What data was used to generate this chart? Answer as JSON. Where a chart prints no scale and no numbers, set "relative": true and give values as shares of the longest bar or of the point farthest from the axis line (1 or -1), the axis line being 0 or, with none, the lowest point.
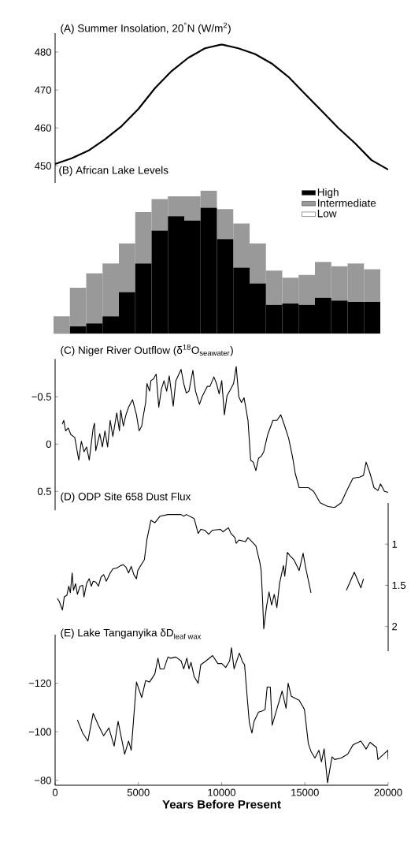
{
  "chart_data": [
    {
      "type": "line",
      "title": "(A) Summer Insolation, 20$^{°}$N (W/m$^{2}$)",
      "xlim": [
        0,
        20000
      ],
      "ylim": [
        445.5,
        485
      ],
      "yticks": [
        450,
        460,
        470,
        480
      ],
      "tick_labels": "y",
      "series": [
        {
          "color": "#000000",
          "x": [
            0,
            1000,
            2000,
            3000,
            4000,
            5000,
            6000,
            7000,
            8000,
            9000,
            10000,
            11000,
            12000,
            13000,
            14000,
            15000,
            16000,
            17000,
            18000,
            19000,
            20000
          ],
          "values": [
            450.5,
            452,
            454,
            457,
            460.5,
            465,
            470.5,
            475,
            478.5,
            481,
            482,
            481,
            479.5,
            477,
            473.5,
            469,
            464.5,
            460,
            456,
            451.5,
            449
          ]
        }
      ]
    },
    {
      "type": "bar",
      "title": "(B) African Lake Levels",
      "relative": true,
      "stacked": true,
      "legend": "top right",
      "categories": [
        null,
        null,
        null,
        null,
        null,
        null,
        null,
        null,
        null,
        null,
        null,
        null,
        null,
        null,
        null,
        null,
        null,
        null,
        null,
        null
      ],
      "series": [
        {
          "name": "High",
          "color": "#000000",
          "values": [
            0,
            0.05,
            0.07,
            0.12,
            0.29,
            0.49,
            0.72,
            0.82,
            0.79,
            0.88,
            0.66,
            0.46,
            0.35,
            0.2,
            0.21,
            0.2,
            0.25,
            0.23,
            0.22,
            0.22
          ]
        },
        {
          "name": "Intermediate",
          "color": "#999999",
          "values": [
            0.12,
            0.27,
            0.35,
            0.37,
            0.34,
            0.36,
            0.22,
            0.14,
            0.17,
            0.12,
            0.21,
            0.31,
            0.28,
            0.24,
            0.18,
            0.21,
            0.25,
            0.24,
            0.27,
            0.23
          ]
        },
        {
          "name": "Low",
          "color": "#ffffff",
          "values": [
            null,
            null,
            null,
            null,
            null,
            null,
            null,
            null,
            null,
            null,
            null,
            null,
            null,
            null,
            null,
            null,
            null,
            null,
            null,
            null
          ]
        }
      ]
    },
    {
      "type": "line",
      "title": "(C) Niger River Outflow  (δ$^{18}$O$_{seawater}$)",
      "xlim": [
        0,
        20000
      ],
      "ylim": [
        0.7,
        -0.9
      ],
      "yticks": [
        {
          "value": -0.5,
          "label": "−0.5"
        },
        0,
        0.5
      ],
      "tick_labels": "y",
      "series": [
        {
          "color": "#000000",
          "x": [
            425,
            520,
            630,
            790,
            945,
            1180,
            1420,
            1575,
            1735,
            1890,
            2050,
            2285,
            2364,
            2440,
            2680,
            2836,
            2994,
            3152,
            3309,
            3467,
            3703,
            3861,
            3940,
            4097,
            4255,
            4412,
            4649,
            4885,
            5043,
            5200,
            5279,
            5437,
            5516,
            5673,
            5752,
            5910,
            6067,
            6225,
            6382,
            6540,
            6698,
            6855,
            7092,
            7249,
            7564,
            7722,
            7880,
            8037,
            8274,
            8431,
            8668,
            8825,
            9140,
            9298,
            9534,
            9692,
            9850,
            10007,
            10165,
            10322,
            10480,
            10716,
            10874,
            11032,
            11189,
            11347,
            11583,
            11741,
            11898,
            12056,
            12214,
            12371,
            12529,
            12765,
            13080,
            13317,
            13553,
            13790,
            14026,
            14262,
            14420,
            14656,
            14972,
            15208,
            15523,
            15917,
            16390,
            16784,
            17178,
            17493,
            17887,
            18281,
            18518,
            18675,
            18912,
            19148,
            19384,
            19542,
            19778,
            20000
          ],
          "values": [
            -0.21,
            -0.25,
            -0.14,
            -0.17,
            -0.1,
            -0.07,
            0.17,
            -0.03,
            0.08,
            0.03,
            0.17,
            -0.17,
            -0.22,
            0.07,
            -0.11,
            0.03,
            -0.14,
            0.03,
            -0.25,
            -0.08,
            -0.33,
            -0.14,
            -0.36,
            -0.19,
            -0.31,
            -0.39,
            -0.47,
            -0.31,
            -0.14,
            -0.19,
            -0.28,
            -0.44,
            -0.64,
            -0.56,
            -0.67,
            -0.69,
            -0.74,
            -0.39,
            -0.58,
            -0.67,
            -0.56,
            -0.72,
            -0.4,
            -0.67,
            -0.79,
            -0.64,
            -0.54,
            -0.56,
            -0.78,
            -0.56,
            -0.42,
            -0.5,
            -0.61,
            -0.61,
            -0.71,
            -0.64,
            -0.53,
            -0.67,
            -0.31,
            -0.51,
            -0.56,
            -0.64,
            -0.82,
            -0.5,
            -0.44,
            -0.49,
            -0.25,
            0.17,
            0.19,
            0.28,
            0.15,
            0.13,
            0.08,
            -0.1,
            -0.25,
            -0.25,
            -0.31,
            -0.19,
            -0.06,
            0.14,
            0.31,
            0.46,
            0.46,
            0.46,
            0.5,
            0.62,
            0.66,
            0.67,
            0.62,
            0.5,
            0.36,
            0.35,
            0.33,
            0.19,
            0.31,
            0.46,
            0.49,
            0.42,
            0.5,
            0.51
          ]
        }
      ]
    },
    {
      "type": "line",
      "title": "(D) ODP Site 658 Dust Flux",
      "xlim": [
        0,
        20000
      ],
      "y2lim": [
        2.3,
        0.5
      ],
      "y2ticks": [
        1,
        1.5,
        2
      ],
      "tick_labels": "y",
      "series": [
        {
          "color": "#000000",
          "axis": "y2",
          "x": [
            126,
            236,
            441,
            551,
            709,
            819,
            914,
            1024,
            1103,
            1229,
            1339,
            1497,
            1654,
            1733,
            1891,
            2048,
            2175,
            2285,
            2442,
            2600,
            2758,
            2915,
            3073,
            3309,
            3467,
            3703,
            3940,
            4097,
            4255,
            4412,
            4570,
            4728,
            4885,
            4964,
            5200,
            5358,
            5516,
            5752,
            5988,
            6303,
            6776,
            7564,
            7722,
            7880,
            8352,
            8589,
            8746,
            8983,
            9219,
            9456,
            9928,
            10086,
            10401,
            10559,
            10795,
            10874,
            11032,
            11426,
            11583,
            11820,
            12056,
            12292,
            12371,
            12450,
            12529,
            12686,
            12844,
            13002,
            13159,
            13317,
            13475,
            13711,
            13790,
            13947,
            14105,
            14341,
            14656,
            14893,
            15050,
            15366,
            16400,
            17493,
            17966,
            18360,
            18518
          ],
          "values": [
            1.66,
            1.69,
            1.8,
            1.64,
            1.62,
            1.51,
            1.59,
            1.35,
            1.56,
            1.48,
            1.61,
            1.51,
            1.5,
            1.64,
            1.48,
            1.42,
            1.51,
            1.45,
            1.46,
            1.51,
            1.4,
            1.37,
            1.45,
            1.35,
            1.3,
            1.29,
            1.26,
            1.25,
            1.28,
            1.35,
            1.27,
            1.37,
            1.42,
            1.32,
            1.24,
            1.19,
            0.94,
            0.71,
            0.74,
            0.66,
            0.64,
            0.64,
            0.66,
            0.64,
            0.69,
            0.87,
            0.82,
            0.83,
            0.88,
            0.83,
            0.82,
            0.85,
            0.8,
            0.87,
            0.92,
            0.99,
            0.95,
            0.97,
            0.92,
            0.97,
            1.02,
            1.22,
            1.32,
            1.64,
            2.03,
            1.77,
            1.58,
            1.74,
            1.61,
            1.77,
            1.48,
            1.26,
            1.39,
            1.1,
            1.14,
            1.19,
            1.32,
            1.11,
            1.29,
            1.59,
            null,
            1.56,
            1.34,
            1.53,
            1.42
          ]
        }
      ]
    },
    {
      "type": "line",
      "title": "\\text{(E) Lake Tanganyika δD}_{\\text{leaf wax}}",
      "xlabel": "Years Before Present",
      "xlim": [
        0,
        20000
      ],
      "xticks": [
        0,
        5000,
        10000,
        15000,
        20000
      ],
      "ylim": [
        -78,
        -140
      ],
      "yticks": [
        {
          "value": -120,
          "label": "−120"
        },
        {
          "value": -100,
          "label": "−100"
        },
        {
          "value": -80,
          "label": "−80"
        }
      ],
      "series": [
        {
          "color": "#000000",
          "x": [
            1339,
            1654,
            1970,
            2285,
            2600,
            2915,
            3230,
            3546,
            3782,
            4176,
            4412,
            4570,
            4885,
            5200,
            5437,
            5673,
            5988,
            6177,
            6303,
            6540,
            6776,
            6934,
            7249,
            7564,
            7722,
            7911,
            8037,
            8163,
            8352,
            8589,
            8746,
            9061,
            9456,
            9771,
            10007,
            10244,
            10480,
            10590,
            10748,
            11063,
            11268,
            11378,
            11504,
            11662,
            11820,
            11946,
            12214,
            12450,
            12608,
            12734,
            12923,
            13033,
            13632,
            13868,
            13994,
            14184,
            14656,
            14972,
            15208,
            15366,
            15602,
            15839,
            15996,
            16154,
            16359,
            16627,
            16784,
            17178,
            17572,
            17887,
            18360,
            18675,
            18912,
            19306,
            19384,
            19983,
            20000
          ],
          "values": [
            -104.9,
            -99.5,
            -96.2,
            -107.6,
            -102.7,
            -98.4,
            -101.6,
            -94.1,
            -104.3,
            -90.8,
            -96.2,
            -92.4,
            -120.5,
            -114.1,
            -121.1,
            -120.5,
            -123.8,
            -130.3,
            -125.9,
            -125.9,
            -130.8,
            -130.3,
            -130.8,
            -129.2,
            -125.9,
            -130.3,
            -125.9,
            -128.6,
            -122.7,
            -120,
            -127.6,
            -129.2,
            -131.4,
            -128.1,
            -128.1,
            -126.5,
            -129.2,
            -134.6,
            -125.9,
            -132.4,
            -128.6,
            -127.6,
            -116.8,
            -103.8,
            -99.5,
            -104.3,
            -108.1,
            -108.6,
            -109.2,
            -118.4,
            -118.4,
            -102.7,
            -116.8,
            -109.7,
            -120,
            -114.6,
            -113,
            -109.2,
            -95.1,
            -91.9,
            -89.2,
            -92.4,
            -87.6,
            -93,
            -79,
            -89.7,
            -88.6,
            -89.2,
            -90.8,
            -94.6,
            -96.2,
            -92.9,
            -95.7,
            -93.5,
            -88.6,
            -92.4,
            -88.6
          ]
        }
      ]
    }
  ]
}
